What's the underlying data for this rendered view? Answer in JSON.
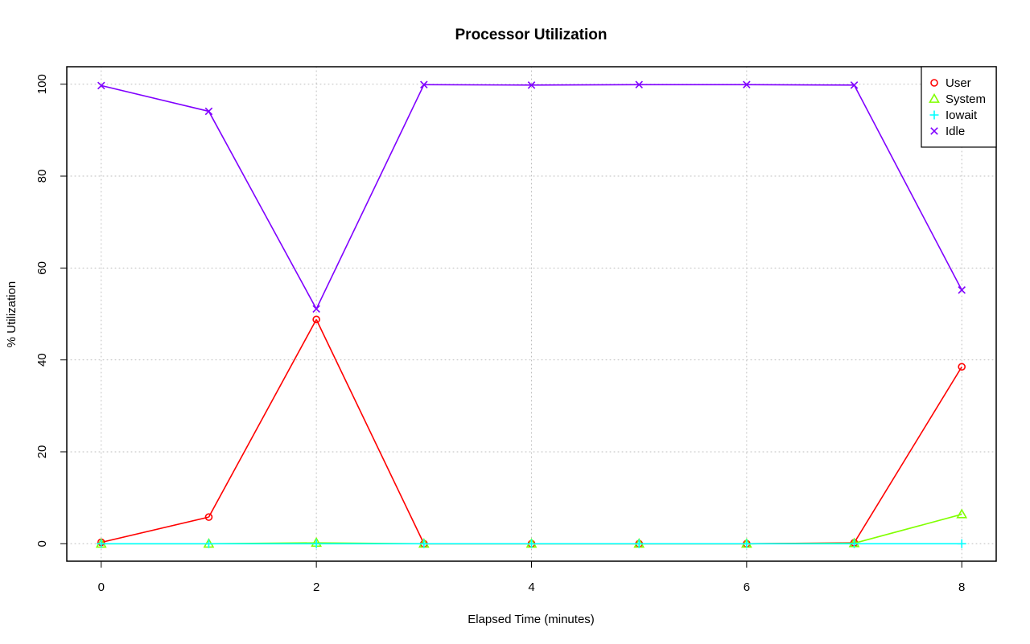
{
  "chart_data": {
    "type": "line",
    "title": "Processor Utilization",
    "xlabel": "Elapsed Time (minutes)",
    "ylabel": "% Utilization",
    "x": [
      0,
      1,
      2,
      3,
      4,
      5,
      6,
      7,
      8
    ],
    "xlim": [
      -0.32,
      8.32
    ],
    "ylim": [
      -3.8,
      103.8
    ],
    "xticks": [
      0,
      2,
      4,
      6,
      8
    ],
    "yticks": [
      0,
      20,
      40,
      60,
      80,
      100
    ],
    "grid": true,
    "legend_position": "top-right",
    "series": [
      {
        "name": "User",
        "color": "#ff0000",
        "marker": "circle",
        "values": [
          0.3,
          5.8,
          48.8,
          0.0,
          0.0,
          0.0,
          0.0,
          0.2,
          38.5
        ]
      },
      {
        "name": "System",
        "color": "#80ff00",
        "marker": "triangle",
        "values": [
          0.0,
          0.0,
          0.2,
          0.0,
          0.0,
          0.0,
          0.0,
          0.1,
          6.4
        ]
      },
      {
        "name": "Iowait",
        "color": "#00ffff",
        "marker": "plus",
        "values": [
          0.0,
          0.0,
          0.0,
          0.0,
          0.0,
          0.0,
          0.0,
          0.0,
          0.0
        ]
      },
      {
        "name": "Idle",
        "color": "#8000ff",
        "marker": "cross",
        "values": [
          99.7,
          94.1,
          51.1,
          99.9,
          99.8,
          99.9,
          99.9,
          99.8,
          55.2
        ]
      }
    ]
  }
}
